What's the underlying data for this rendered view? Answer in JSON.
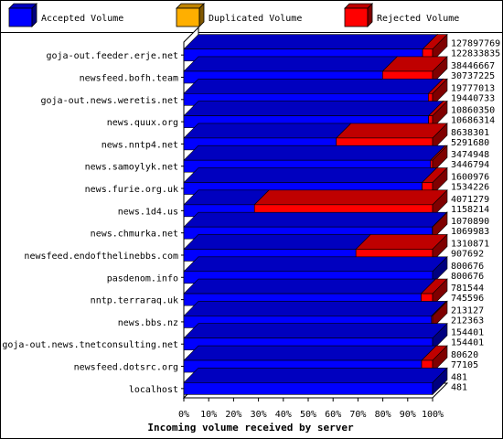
{
  "legend": [
    {
      "label": "Accepted Volume",
      "color": "#0000ff",
      "side": "#00007f",
      "top": "#0000bf"
    },
    {
      "label": "Duplicated Volume",
      "color": "#ffaf00",
      "side": "#7f5700",
      "top": "#bf8300"
    },
    {
      "label": "Rejected Volume",
      "color": "#ff0000",
      "side": "#7f0000",
      "top": "#bf0000"
    }
  ],
  "chart_data": {
    "type": "bar",
    "orientation": "horizontal",
    "stacked": true,
    "title": "",
    "xlabel": "Incoming volume received by server",
    "ylabel": "",
    "xlim": [
      0,
      100
    ],
    "x_unit": "%",
    "x_ticks": [
      "0%",
      "10%",
      "20%",
      "30%",
      "40%",
      "50%",
      "60%",
      "70%",
      "80%",
      "90%",
      "100%"
    ],
    "grid": false,
    "legend_position": "top",
    "categories": [
      "goja-out.feeder.erje.net",
      "newsfeed.bofh.team",
      "goja-out.news.weretis.net",
      "news.quux.org",
      "news.nntp4.net",
      "news.samoylyk.net",
      "news.furie.org.uk",
      "news.1d4.us",
      "news.chmurka.net",
      "newsfeed.endofthelinebbs.com",
      "pasdenom.info",
      "nntp.terraraq.uk",
      "news.bbs.nz",
      "goja-out.news.tnetconsulting.net",
      "newsfeed.dotsrc.org",
      "localhost"
    ],
    "incoming_bytes": [
      127897769,
      38446667,
      19777013,
      10860350,
      8638301,
      3474948,
      1600976,
      4071279,
      1070890,
      1310871,
      800676,
      781544,
      213127,
      154401,
      80620,
      481
    ],
    "accepted_bytes": [
      122833835,
      30737225,
      19440733,
      10686314,
      5291680,
      3446794,
      1534226,
      1158214,
      1069983,
      907692,
      800676,
      745596,
      212363,
      154401,
      77105,
      481
    ],
    "series": [
      {
        "name": "Accepted Volume",
        "color": "#0000ff",
        "values": [
          96.0,
          79.9,
          98.3,
          98.4,
          61.3,
          99.2,
          95.8,
          28.4,
          99.9,
          69.2,
          100.0,
          95.4,
          99.6,
          100.0,
          95.6,
          100.0
        ]
      },
      {
        "name": "Duplicated Volume",
        "color": "#ffaf00",
        "values": [
          0,
          0,
          0,
          0,
          0,
          0,
          0,
          0,
          0,
          0,
          0,
          0,
          0,
          0,
          0,
          0
        ]
      },
      {
        "name": "Rejected Volume",
        "color": "#ff0000",
        "values": [
          4.0,
          20.1,
          1.7,
          1.6,
          38.7,
          0.8,
          4.2,
          71.6,
          0.1,
          30.8,
          0.0,
          4.6,
          0.4,
          0.0,
          4.4,
          0.0
        ]
      }
    ]
  }
}
